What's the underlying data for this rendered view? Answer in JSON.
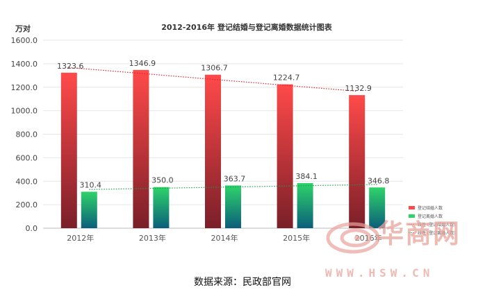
{
  "chart_data": {
    "type": "bar",
    "title": "2012-2016年 登记结婚与登记离婚数据统计图表",
    "unit_label": "万对",
    "categories": [
      "2012年",
      "2013年",
      "2014年",
      "2015年",
      "2016年"
    ],
    "series": [
      {
        "name": "登记结婚人数",
        "values": [
          1323.6,
          1346.9,
          1306.7,
          1224.7,
          1132.9
        ],
        "value_labels": [
          "1323.6",
          "1346.9",
          "1306.7",
          "1224.7",
          "1132.9"
        ],
        "color_top": "#ff4a4a",
        "color_bottom": "#7a1f28"
      },
      {
        "name": "登记离婚人数",
        "values": [
          310.4,
          350.0,
          363.7,
          384.1,
          346.8
        ],
        "value_labels": [
          "310.4",
          "350.0",
          "363.7",
          "384.1",
          "346.8"
        ],
        "color_top": "#2fd36a",
        "color_bottom": "#0b5e7a"
      }
    ],
    "trendlines": [
      {
        "name": "线性 (登记结婚人数)",
        "series": 0,
        "style": "dotted",
        "color": "#d9232d"
      },
      {
        "name": "线性 (登记离婚人数)",
        "series": 1,
        "style": "dotted",
        "color": "#1a9c4a"
      }
    ],
    "y_ticks": [
      "0.0",
      "200.0",
      "400.0",
      "600.0",
      "800.0",
      "1000.0",
      "1200.0",
      "1400.0",
      "1600.0"
    ],
    "ylim": [
      0,
      1600
    ],
    "grid": true,
    "legend_position": "bottom-right"
  },
  "source_text": "数据来源：民政部官网",
  "watermark": {
    "logo_text": "华商网",
    "url_text": "WWW.HSW.CN",
    "color": "#e9a39c"
  }
}
